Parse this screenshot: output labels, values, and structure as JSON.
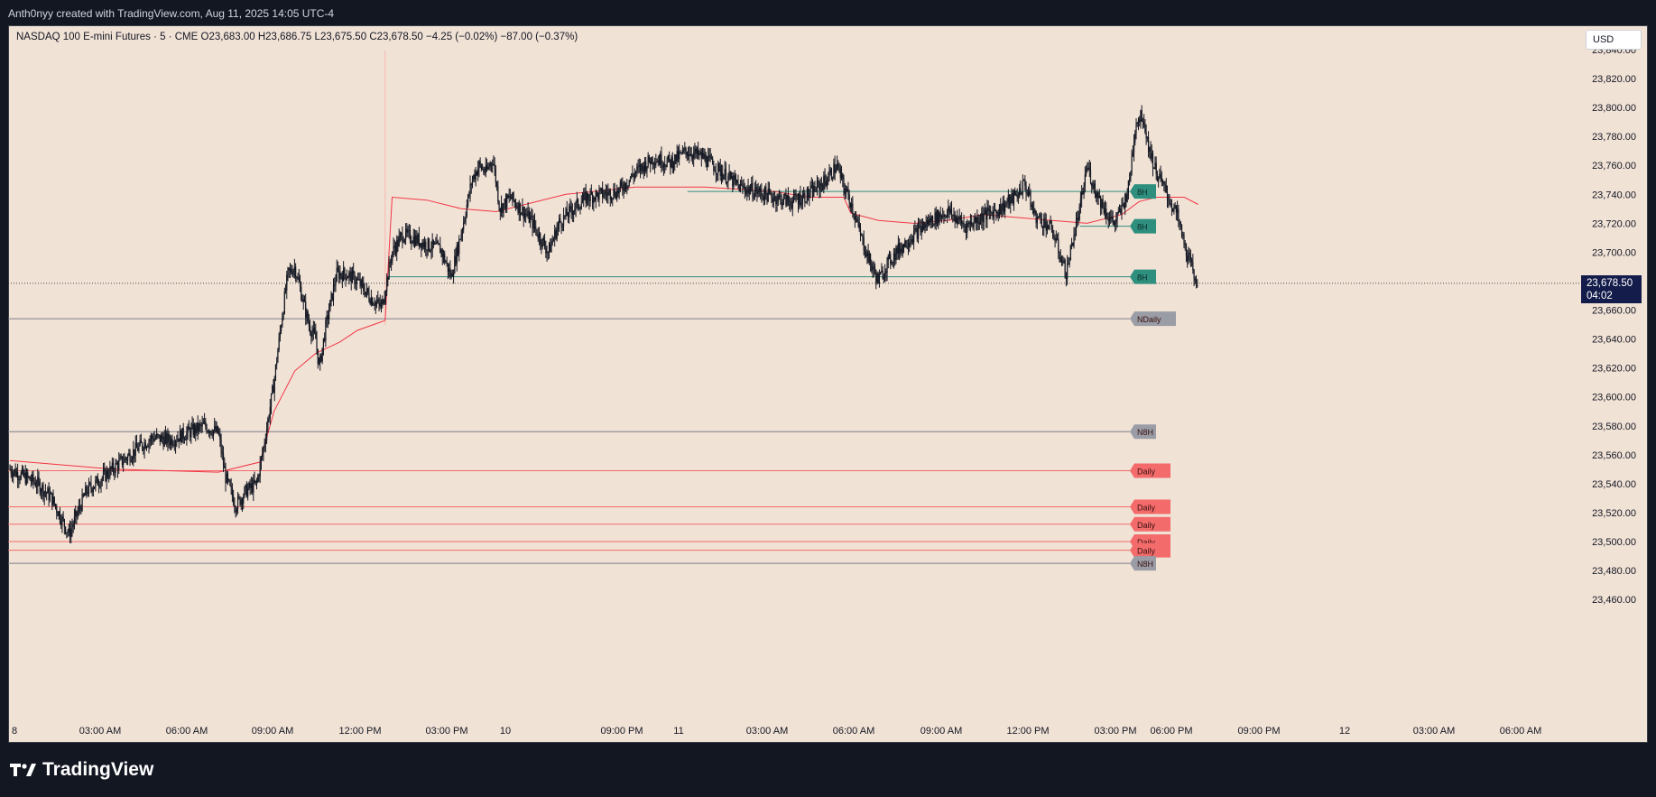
{
  "header": {
    "attribution": "Anth0nyy created with TradingView.com, Aug 11, 2025 14:05 UTC-4"
  },
  "legend": {
    "symbol": "NASDAQ 100 E-mini Futures · 5 · CME",
    "o_label": "O",
    "o": "23,683.00",
    "h_label": "H",
    "h": "23,686.75",
    "l_label": "L",
    "l": "23,675.50",
    "c_label": "C",
    "c": "23,678.50",
    "change": "−4.25 (−0.02%)",
    "change2": "−87.00 (−0.37%)"
  },
  "currency_button": "USD",
  "last_price": {
    "price": "23,678.50",
    "countdown": "04:02"
  },
  "footer": {
    "brand": "TradingView"
  },
  "colors": {
    "background": "#f1e2d6",
    "candles": "#131722",
    "vwap": "#f23645",
    "teal": "#2e8f7e",
    "red": "#f36b6b",
    "gray": "#9a9da5"
  },
  "chart_data": {
    "type": "candlestick",
    "instrument": "NASDAQ 100 E-mini Futures",
    "interval": "5",
    "ylim": [
      23450,
      23850
    ],
    "y_ticks": [
      "23,840.00",
      "23,820.00",
      "23,800.00",
      "23,780.00",
      "23,760.00",
      "23,740.00",
      "23,720.00",
      "23,700.00",
      "23,680.00",
      "23,660.00",
      "23,640.00",
      "23,620.00",
      "23,600.00",
      "23,580.00",
      "23,560.00",
      "23,540.00",
      "23,520.00",
      "23,500.00",
      "23,480.00",
      "23,460.00"
    ],
    "x_ticks": [
      "8",
      "03:00 AM",
      "06:00 AM",
      "09:00 AM",
      "12:00 PM",
      "03:00 PM",
      "10",
      "09:00 PM",
      "11",
      "03:00 AM",
      "06:00 AM",
      "09:00 AM",
      "12:00 PM",
      "03:00 PM",
      "06:00 PM",
      "09:00 PM",
      "12",
      "03:00 AM",
      "06:00 AM"
    ],
    "price_path": [
      [
        0,
        23550
      ],
      [
        0.08,
        23540
      ],
      [
        0.12,
        23530
      ],
      [
        0.17,
        23505
      ],
      [
        0.22,
        23535
      ],
      [
        0.27,
        23545
      ],
      [
        0.32,
        23555
      ],
      [
        0.37,
        23565
      ],
      [
        0.41,
        23572
      ],
      [
        0.46,
        23570
      ],
      [
        0.51,
        23575
      ],
      [
        0.56,
        23580
      ],
      [
        0.6,
        23575
      ],
      [
        0.62,
        23545
      ],
      [
        0.65,
        23525
      ],
      [
        0.68,
        23535
      ],
      [
        0.71,
        23540
      ],
      [
        0.73,
        23565
      ],
      [
        0.76,
        23610
      ],
      [
        0.78,
        23650
      ],
      [
        0.8,
        23685
      ],
      [
        0.82,
        23690
      ],
      [
        0.84,
        23670
      ],
      [
        0.86,
        23650
      ],
      [
        0.88,
        23640
      ],
      [
        0.89,
        23620
      ],
      [
        0.91,
        23650
      ],
      [
        0.94,
        23685
      ],
      [
        0.97,
        23685
      ],
      [
        1.0,
        23680
      ],
      [
        1.04,
        23668
      ],
      [
        1.07,
        23662
      ],
      [
        1.1,
        23700
      ],
      [
        1.13,
        23712
      ],
      [
        1.16,
        23710
      ],
      [
        1.2,
        23705
      ],
      [
        1.24,
        23702
      ],
      [
        1.27,
        23683
      ],
      [
        1.3,
        23715
      ],
      [
        1.33,
        23750
      ],
      [
        1.35,
        23760
      ],
      [
        1.37,
        23755
      ],
      [
        1.39,
        23765
      ],
      [
        1.41,
        23730
      ],
      [
        1.44,
        23738
      ],
      [
        1.47,
        23730
      ],
      [
        1.5,
        23722
      ],
      [
        1.53,
        23708
      ],
      [
        1.55,
        23700
      ],
      [
        1.58,
        23720
      ],
      [
        1.62,
        23730
      ],
      [
        1.66,
        23738
      ],
      [
        1.7,
        23740
      ],
      [
        1.75,
        23742
      ],
      [
        1.8,
        23755
      ],
      [
        1.85,
        23765
      ],
      [
        1.9,
        23762
      ],
      [
        1.95,
        23770
      ],
      [
        2.0,
        23765
      ],
      [
        2.05,
        23755
      ],
      [
        2.1,
        23745
      ],
      [
        2.15,
        23742
      ],
      [
        2.2,
        23738
      ],
      [
        2.25,
        23735
      ],
      [
        2.3,
        23740
      ],
      [
        2.35,
        23750
      ],
      [
        2.38,
        23760
      ],
      [
        2.4,
        23745
      ],
      [
        2.42,
        23735
      ],
      [
        2.45,
        23710
      ],
      [
        2.48,
        23690
      ],
      [
        2.5,
        23680
      ],
      [
        2.52,
        23690
      ],
      [
        2.55,
        23700
      ],
      [
        2.6,
        23712
      ],
      [
        2.65,
        23722
      ],
      [
        2.7,
        23728
      ],
      [
        2.75,
        23718
      ],
      [
        2.8,
        23725
      ],
      [
        2.85,
        23730
      ],
      [
        2.9,
        23740
      ],
      [
        2.92,
        23748
      ],
      [
        2.95,
        23725
      ],
      [
        2.98,
        23720
      ],
      [
        3.0,
        23715
      ],
      [
        3.02,
        23700
      ],
      [
        3.04,
        23685
      ],
      [
        3.06,
        23710
      ],
      [
        3.08,
        23730
      ],
      [
        3.1,
        23760
      ],
      [
        3.12,
        23745
      ],
      [
        3.14,
        23735
      ],
      [
        3.16,
        23725
      ],
      [
        3.18,
        23720
      ],
      [
        3.2,
        23730
      ],
      [
        3.22,
        23745
      ],
      [
        3.24,
        23790
      ],
      [
        3.26,
        23795
      ],
      [
        3.28,
        23770
      ],
      [
        3.3,
        23755
      ],
      [
        3.32,
        23745
      ],
      [
        3.34,
        23735
      ],
      [
        3.36,
        23725
      ],
      [
        3.38,
        23705
      ],
      [
        3.4,
        23690
      ],
      [
        3.42,
        23678
      ]
    ],
    "vwap_path": [
      [
        0,
        23556
      ],
      [
        0.3,
        23550
      ],
      [
        0.6,
        23548
      ],
      [
        0.72,
        23555
      ],
      [
        0.76,
        23590
      ],
      [
        0.82,
        23618
      ],
      [
        0.88,
        23630
      ],
      [
        0.95,
        23638
      ],
      [
        1.0,
        23646
      ],
      [
        1.07,
        23652
      ],
      [
        1.08,
        23653
      ],
      [
        1.1,
        23738
      ],
      [
        1.2,
        23736
      ],
      [
        1.3,
        23730
      ],
      [
        1.4,
        23728
      ],
      [
        1.5,
        23734
      ],
      [
        1.6,
        23740
      ],
      [
        1.8,
        23745
      ],
      [
        2.0,
        23745
      ],
      [
        2.2,
        23742
      ],
      [
        2.3,
        23738
      ],
      [
        2.4,
        23738
      ],
      [
        2.42,
        23727
      ],
      [
        2.5,
        23722
      ],
      [
        2.6,
        23720
      ],
      [
        2.7,
        23722
      ],
      [
        2.8,
        23726
      ],
      [
        3.0,
        23722
      ],
      [
        3.1,
        23720
      ],
      [
        3.2,
        23726
      ],
      [
        3.25,
        23735
      ],
      [
        3.3,
        23738
      ],
      [
        3.38,
        23738
      ],
      [
        3.42,
        23733
      ]
    ],
    "levels": [
      {
        "label": "8H",
        "price": 23742,
        "color": "teal"
      },
      {
        "label": "8H",
        "price": 23718,
        "color": "teal"
      },
      {
        "label": "8H",
        "price": 23683,
        "color": "teal"
      },
      {
        "label": "NDaily",
        "price": 23654,
        "color": "gray"
      },
      {
        "label": "N8H",
        "price": 23576,
        "color": "gray"
      },
      {
        "label": "Daily",
        "price": 23549,
        "color": "red"
      },
      {
        "label": "Daily",
        "price": 23524,
        "color": "red"
      },
      {
        "label": "Daily",
        "price": 23512,
        "color": "red"
      },
      {
        "label": "Daily",
        "price": 23500,
        "color": "red"
      },
      {
        "label": "Daily",
        "price": 23494,
        "color": "red"
      },
      {
        "label": "N8H",
        "price": 23485,
        "color": "gray"
      }
    ],
    "last_price": 23678.5,
    "grid": false
  }
}
